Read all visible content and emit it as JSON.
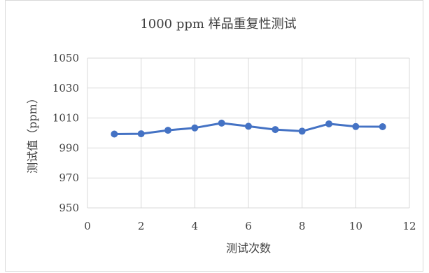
{
  "chart_data": {
    "type": "line",
    "title": "1000 ppm 样品重复性测试",
    "xlabel": "测试次数",
    "ylabel": "测试值（ppm）",
    "xlim": [
      0,
      12
    ],
    "ylim": [
      950,
      1050
    ],
    "x_ticks": [
      "0",
      "2",
      "4",
      "6",
      "8",
      "10",
      "12"
    ],
    "y_ticks": [
      "1050",
      "1030",
      "1010",
      "990",
      "970",
      "950"
    ],
    "grid": true,
    "legend": "none",
    "series": [
      {
        "color": "#4472c4",
        "x": [
          1,
          2,
          3,
          4,
          5,
          6,
          7,
          8,
          9,
          10,
          11
        ],
        "y": [
          999.3,
          999.5,
          1001.8,
          1003.4,
          1006.6,
          1004.5,
          1002.3,
          1001.2,
          1006.1,
          1004.3,
          1004.2
        ]
      }
    ]
  }
}
